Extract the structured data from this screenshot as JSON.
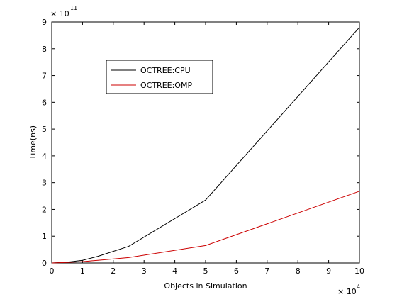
{
  "chart_data": {
    "type": "line",
    "xlabel": "Objects in Simulation",
    "ylabel": "Time(ns)",
    "x_multiplier_label": "× 10",
    "x_multiplier_exp": "4",
    "y_multiplier_label": "× 10",
    "y_multiplier_exp": "11",
    "xlim": [
      0,
      10
    ],
    "ylim": [
      0,
      9
    ],
    "xticks": [
      0,
      1,
      2,
      3,
      4,
      5,
      6,
      7,
      8,
      9,
      10
    ],
    "yticks": [
      0,
      1,
      2,
      3,
      4,
      5,
      6,
      7,
      8,
      9
    ],
    "grid": false,
    "legend_position": "top-left",
    "series": [
      {
        "name": "OCTREE:CPU",
        "color": "#000000",
        "x": [
          0,
          0.5,
          1,
          1.5,
          2.5,
          5,
          10
        ],
        "y": [
          0,
          0.03,
          0.1,
          0.25,
          0.62,
          2.35,
          8.8
        ]
      },
      {
        "name": "OCTREE:OMP",
        "color": "#cc0000",
        "x": [
          0,
          0.5,
          1,
          1.5,
          2.5,
          5,
          10
        ],
        "y": [
          0,
          0.02,
          0.05,
          0.1,
          0.2,
          0.65,
          2.68
        ]
      }
    ]
  }
}
